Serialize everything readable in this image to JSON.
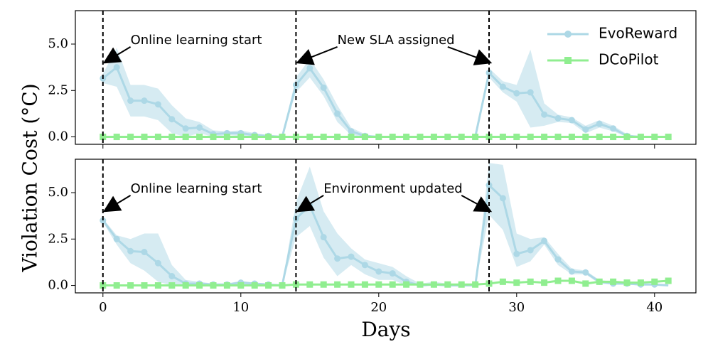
{
  "chart_data": {
    "type": "line",
    "shared": {
      "xlabel": "Days",
      "ylabel": "Violation Cost (°C)",
      "xlim": [
        -2,
        43
      ],
      "xticks": [
        0,
        10,
        20,
        30,
        40
      ],
      "ylim": [
        -0.4,
        6.8
      ],
      "yticks": [
        0.0,
        2.5,
        5.0
      ],
      "ytick_labels": [
        "0.0",
        "2.5",
        "5.0"
      ],
      "colors": {
        "evoreward": "#add8e6",
        "dcopilot": "#90ee90"
      }
    },
    "legend": [
      "EvoReward",
      "DCoPilot"
    ],
    "panels": [
      {
        "vlines": [
          0,
          14,
          28
        ],
        "annotations": [
          {
            "text": "Online learning start",
            "x": 0,
            "y": 4.0,
            "tx": 2.0,
            "ty": 5.2
          },
          {
            "text": "New SLA assigned",
            "x": 14,
            "y": 4.0,
            "tx": 17.0,
            "ty": 5.2
          },
          {
            "text": "",
            "x": 28,
            "y": 4.0,
            "tx": 25.0,
            "ty": 5.2
          }
        ],
        "series": [
          {
            "name": "EvoReward",
            "x": [
              0,
              1,
              2,
              3,
              4,
              5,
              6,
              7,
              8,
              9,
              10,
              11,
              12,
              13,
              14,
              15,
              16,
              17,
              18,
              19,
              20,
              21,
              22,
              23,
              24,
              25,
              26,
              27,
              28,
              29,
              30,
              31,
              32,
              33,
              34,
              35,
              36,
              37,
              38,
              39,
              40,
              41
            ],
            "values": [
              3.15,
              3.75,
              1.95,
              1.95,
              1.75,
              0.95,
              0.45,
              0.5,
              0.15,
              0.2,
              0.2,
              0.1,
              0.05,
              0.0,
              2.8,
              3.7,
              2.65,
              1.25,
              0.3,
              0.05,
              0.0,
              0.0,
              0.0,
              0.0,
              0.0,
              0.0,
              0.0,
              0.0,
              3.45,
              2.7,
              2.35,
              2.4,
              1.2,
              1.0,
              0.9,
              0.4,
              0.7,
              0.45,
              0.05,
              0.0,
              0.0,
              0.0
            ],
            "upper": [
              3.4,
              4.8,
              2.8,
              2.8,
              2.6,
              1.7,
              1.0,
              0.8,
              0.35,
              0.3,
              0.35,
              0.2,
              0.1,
              0.0,
              3.2,
              4.2,
              3.1,
              1.7,
              0.5,
              0.15,
              0.0,
              0.0,
              0.0,
              0.0,
              0.0,
              0.0,
              0.0,
              0.0,
              3.7,
              3.0,
              2.8,
              4.7,
              1.8,
              1.2,
              1.05,
              0.6,
              0.9,
              0.6,
              0.15,
              0.0,
              0.0,
              0.0
            ],
            "lower": [
              2.9,
              2.7,
              1.1,
              1.1,
              0.9,
              0.2,
              0.0,
              0.2,
              0.0,
              0.1,
              0.05,
              0.0,
              0.0,
              0.0,
              2.4,
              3.2,
              2.2,
              0.8,
              0.1,
              0.0,
              0.0,
              0.0,
              0.0,
              0.0,
              0.0,
              0.0,
              0.0,
              0.0,
              3.2,
              2.4,
              1.9,
              0.5,
              0.6,
              0.8,
              0.75,
              0.2,
              0.5,
              0.3,
              0.0,
              0.0,
              0.0,
              0.0
            ]
          },
          {
            "name": "DCoPilot",
            "x": [
              0,
              1,
              2,
              3,
              4,
              5,
              6,
              7,
              8,
              9,
              10,
              11,
              12,
              13,
              14,
              15,
              16,
              17,
              18,
              19,
              20,
              21,
              22,
              23,
              24,
              25,
              26,
              27,
              28,
              29,
              30,
              31,
              32,
              33,
              34,
              35,
              36,
              37,
              38,
              39,
              40,
              41
            ],
            "values": [
              0,
              0,
              0,
              0,
              0,
              0,
              0,
              0,
              0,
              0,
              0,
              0,
              0,
              0,
              0,
              0,
              0,
              0,
              0,
              0,
              0,
              0,
              0,
              0,
              0,
              0,
              0,
              0,
              0,
              0,
              0,
              0,
              0,
              0,
              0,
              0,
              0,
              0,
              0,
              0,
              0,
              0
            ]
          }
        ]
      },
      {
        "vlines": [
          0,
          14,
          28
        ],
        "annotations": [
          {
            "text": "Online learning start",
            "x": 0,
            "y": 4.0,
            "tx": 2.0,
            "ty": 5.2
          },
          {
            "text": "Environment updated",
            "x": 14,
            "y": 4.0,
            "tx": 16.0,
            "ty": 5.2
          },
          {
            "text": "",
            "x": 28,
            "y": 4.0,
            "tx": 26.0,
            "ty": 5.2
          }
        ],
        "series": [
          {
            "name": "EvoReward",
            "x": [
              0,
              1,
              2,
              3,
              4,
              5,
              6,
              7,
              8,
              9,
              10,
              11,
              12,
              13,
              14,
              15,
              16,
              17,
              18,
              19,
              20,
              21,
              22,
              23,
              24,
              25,
              26,
              27,
              28,
              29,
              30,
              31,
              32,
              33,
              34,
              35,
              36,
              37,
              38,
              39,
              40,
              41
            ],
            "values": [
              3.5,
              2.5,
              1.85,
              1.8,
              1.2,
              0.5,
              0.1,
              0.1,
              0.05,
              0.05,
              0.15,
              0.1,
              0.05,
              0.0,
              3.6,
              4.3,
              2.6,
              1.45,
              1.55,
              1.1,
              0.75,
              0.65,
              0.2,
              0.0,
              0.05,
              0.0,
              0.0,
              0.0,
              5.4,
              4.7,
              1.7,
              1.9,
              2.4,
              1.4,
              0.75,
              0.7,
              0.2,
              0.1,
              0.1,
              0.05,
              0.05,
              0.0
            ],
            "upper": [
              3.6,
              2.7,
              2.5,
              2.8,
              2.8,
              1.1,
              0.3,
              0.2,
              0.1,
              0.1,
              0.25,
              0.15,
              0.1,
              0.0,
              4.5,
              6.4,
              4.0,
              2.8,
              2.0,
              1.4,
              1.2,
              1.0,
              0.5,
              0.1,
              0.2,
              0.1,
              0.0,
              0.0,
              6.6,
              6.5,
              2.8,
              2.5,
              2.6,
              1.7,
              0.9,
              0.8,
              0.3,
              0.2,
              0.15,
              0.1,
              0.1,
              0.0
            ],
            "lower": [
              3.4,
              2.2,
              1.2,
              0.8,
              0.2,
              0.0,
              0.0,
              0.0,
              0.0,
              0.0,
              0.05,
              0.05,
              0.0,
              0.0,
              2.6,
              3.2,
              1.5,
              0.5,
              1.1,
              0.6,
              0.3,
              0.3,
              0.0,
              0.0,
              0.0,
              0.0,
              0.0,
              0.0,
              3.8,
              3.0,
              1.0,
              1.3,
              2.2,
              1.1,
              0.6,
              0.6,
              0.1,
              0.05,
              0.05,
              0.0,
              0.0,
              0.0
            ]
          },
          {
            "name": "DCoPilot",
            "x": [
              0,
              1,
              2,
              3,
              4,
              5,
              6,
              7,
              8,
              9,
              10,
              11,
              12,
              13,
              14,
              15,
              16,
              17,
              18,
              19,
              20,
              21,
              22,
              23,
              24,
              25,
              26,
              27,
              28,
              29,
              30,
              31,
              32,
              33,
              34,
              35,
              36,
              37,
              38,
              39,
              40,
              41
            ],
            "values": [
              0,
              0,
              0,
              0,
              0,
              0,
              0,
              0,
              0,
              0,
              0,
              0,
              0,
              0,
              0.05,
              0.05,
              0.05,
              0.05,
              0.05,
              0.05,
              0.05,
              0.05,
              0.05,
              0.05,
              0.05,
              0.05,
              0.05,
              0.05,
              0.1,
              0.2,
              0.15,
              0.2,
              0.15,
              0.25,
              0.25,
              0.1,
              0.2,
              0.2,
              0.15,
              0.15,
              0.2,
              0.25
            ]
          }
        ]
      }
    ]
  }
}
